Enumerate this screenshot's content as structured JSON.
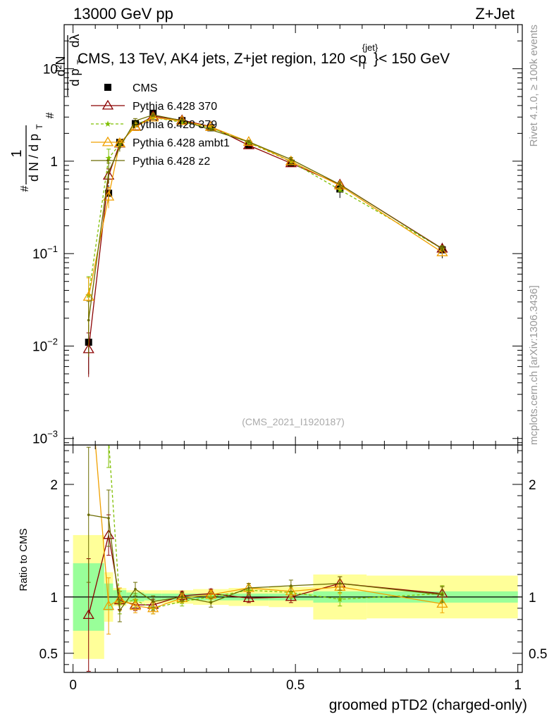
{
  "header": {
    "left": "13000 GeV pp",
    "right": "Z+Jet"
  },
  "side_labels": {
    "rivet": "Rivet 4.1.0, ≥ 100k events",
    "mcplots": "mcplots.cern.ch [arXiv:1306.3436]"
  },
  "chart_data": {
    "type": "scatter",
    "title": "CMS, 13 TeV, AK4 jets, Z+jet region, 120 <p_T^{jet}< 150 GeV",
    "title_parts": {
      "a": "CMS, 13 TeV, AK4 jets, Z+jet region, 120 <p",
      "sup": "{jet}",
      "sub": "T",
      "b": "}< 150 GeV"
    },
    "watermark": "(CMS_2021_I1920187)",
    "xlabel": "groomed pTD2 (charged-only)",
    "ylabel": "1/N dN/dp_T dλ",
    "ylabel_parts": {
      "n1": "1",
      "d1": "d N / d p",
      "t": "T",
      "n2": "d²N",
      "d2": "d p",
      "t2": "T",
      "d3": "dλ",
      "h": "#"
    },
    "ratio_ylabel": "Ratio to CMS",
    "xlim": [
      -0.02,
      1.01
    ],
    "ylim": [
      0.00085,
      30
    ],
    "ratio_ylim": [
      0.33,
      2.35
    ],
    "x_ticks": [
      {
        "v": 0,
        "label": "0"
      },
      {
        "v": 0.5,
        "label": "0.5"
      },
      {
        "v": 1,
        "label": "1"
      }
    ],
    "y_ticks": [
      {
        "v": 0.001,
        "m": "10",
        "e": "−3"
      },
      {
        "v": 0.01,
        "m": "10",
        "e": "−2"
      },
      {
        "v": 0.1,
        "m": "10",
        "e": "−1"
      },
      {
        "v": 1,
        "m": "1",
        "e": ""
      },
      {
        "v": 10,
        "m": "10",
        "e": ""
      }
    ],
    "ratio_ticks": [
      {
        "v": 0.5,
        "label": "0.5"
      },
      {
        "v": 1,
        "label": "1"
      },
      {
        "v": 2,
        "label": "2"
      }
    ],
    "bin_edges": [
      0,
      0.07,
      0.09,
      0.12,
      0.16,
      0.2,
      0.27,
      0.35,
      0.44,
      0.54,
      0.66,
      1.0
    ],
    "x": [
      0.035,
      0.08,
      0.105,
      0.14,
      0.18,
      0.245,
      0.31,
      0.395,
      0.49,
      0.6,
      0.83
    ],
    "data": {
      "name": "CMS",
      "values": [
        0.011,
        0.45,
        1.6,
        2.55,
        3.3,
        2.75,
        2.3,
        1.5,
        0.95,
        0.5,
        0.11
      ],
      "stat": [
        0.3,
        0.12,
        0.06,
        0.04,
        0.03,
        0.03,
        0.03,
        0.03,
        0.03,
        0.05,
        0.05
      ],
      "total": [
        0.55,
        0.22,
        0.08,
        0.06,
        0.06,
        0.06,
        0.07,
        0.08,
        0.09,
        0.2,
        0.19
      ]
    },
    "series": [
      {
        "name": "Pythia 6.428 370",
        "color": "#8b0000",
        "marker": "triangle-open",
        "dash": "",
        "ratio": [
          0.84,
          1.55,
          0.97,
          0.93,
          0.93,
          1.01,
          1.03,
          0.99,
          1.0,
          1.12,
          1.03
        ],
        "ratio_err": [
          0.5,
          0.18,
          0.08,
          0.05,
          0.05,
          0.04,
          0.04,
          0.04,
          0.05,
          0.06,
          0.07
        ]
      },
      {
        "name": "Pythia 6.428 379",
        "color": "#7fbf00",
        "marker": "star",
        "dash": "4,3",
        "ratio": [
          3.2,
          2.4,
          0.95,
          0.97,
          0.9,
          0.96,
          1.0,
          1.06,
          1.04,
          0.98,
          1.03
        ],
        "ratio_err": [
          0.6,
          0.25,
          0.1,
          0.06,
          0.05,
          0.04,
          0.04,
          0.04,
          0.05,
          0.06,
          0.07
        ]
      },
      {
        "name": "Pythia 6.428 ambt1",
        "color": "#f0a000",
        "marker": "triangle-open",
        "dash": "",
        "ratio": [
          3.1,
          0.92,
          0.98,
          0.92,
          0.9,
          0.99,
          1.02,
          1.08,
          1.05,
          1.09,
          0.94
        ],
        "ratio_err": [
          0.6,
          0.25,
          0.1,
          0.06,
          0.05,
          0.04,
          0.04,
          0.04,
          0.05,
          0.06,
          0.08
        ]
      },
      {
        "name": "Pythia 6.428 z2",
        "color": "#6b6b00",
        "marker": "dot",
        "dash": "",
        "ratio": [
          1.73,
          1.7,
          0.88,
          1.07,
          0.96,
          1.0,
          0.95,
          1.08,
          1.1,
          1.12,
          1.02
        ],
        "ratio_err": [
          0.6,
          0.25,
          0.1,
          0.06,
          0.05,
          0.04,
          0.04,
          0.04,
          0.05,
          0.06,
          0.07
        ]
      }
    ]
  }
}
